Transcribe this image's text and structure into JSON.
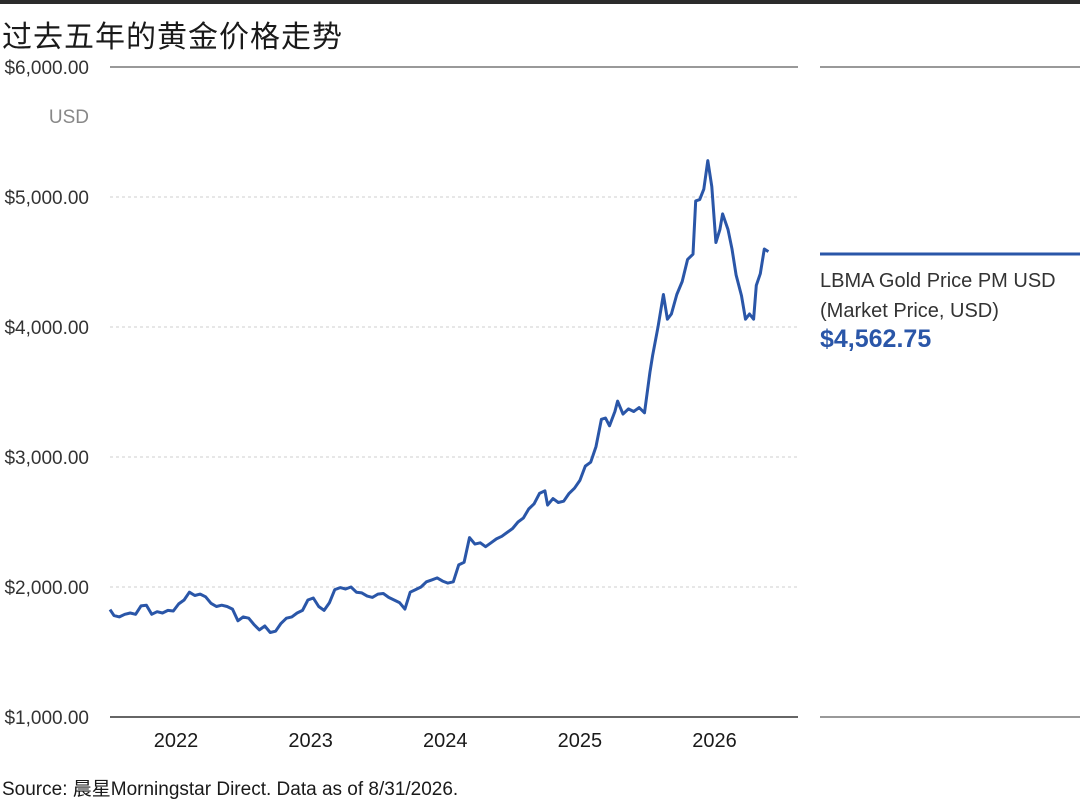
{
  "title": "过去五年的黄金价格走势",
  "source": "Source: 晨星Morningstar Direct. Data as of 8/31/2026.",
  "legend": {
    "series_name_line1": "LBMA Gold Price PM USD",
    "series_name_line2": "(Market Price, USD)",
    "latest_value": "$4,562.75"
  },
  "colors": {
    "series": "#2a56a8",
    "grid": "#cfcfcf",
    "axis": "#333333"
  },
  "chart_data": {
    "type": "line",
    "title": "过去五年的黄金价格走势",
    "ylabel": "USD",
    "xlabel": "",
    "ylim": [
      1000,
      6000
    ],
    "y_ticks": [
      {
        "value": 6000,
        "label": "$6,000.00"
      },
      {
        "value": 5000,
        "label": "$5,000.00"
      },
      {
        "value": 4000,
        "label": "$4,000.00"
      },
      {
        "value": 3000,
        "label": "$3,000.00"
      },
      {
        "value": 2000,
        "label": "$2,000.00"
      },
      {
        "value": 1000,
        "label": "$1,000.00"
      }
    ],
    "y_unit_label": "USD",
    "xlim": [
      2021.55,
      2026.66
    ],
    "x_ticks": [
      {
        "value": 2022,
        "label": "2022"
      },
      {
        "value": 2023,
        "label": "2023"
      },
      {
        "value": 2024,
        "label": "2024"
      },
      {
        "value": 2025,
        "label": "2025"
      },
      {
        "value": 2026,
        "label": "2026"
      }
    ],
    "grid": "horizontal dotted",
    "legend_position": "right",
    "series": [
      {
        "name": "LBMA Gold Price PM USD (Market Price, USD)",
        "points": [
          [
            2021.55,
            1826
          ],
          [
            2021.58,
            1780
          ],
          [
            2021.62,
            1770
          ],
          [
            2021.66,
            1790
          ],
          [
            2021.7,
            1800
          ],
          [
            2021.74,
            1790
          ],
          [
            2021.78,
            1855
          ],
          [
            2021.82,
            1860
          ],
          [
            2021.86,
            1790
          ],
          [
            2021.9,
            1810
          ],
          [
            2021.94,
            1800
          ],
          [
            2021.98,
            1820
          ],
          [
            2022.02,
            1815
          ],
          [
            2022.06,
            1870
          ],
          [
            2022.1,
            1900
          ],
          [
            2022.14,
            1960
          ],
          [
            2022.18,
            1935
          ],
          [
            2022.22,
            1945
          ],
          [
            2022.26,
            1925
          ],
          [
            2022.3,
            1875
          ],
          [
            2022.34,
            1850
          ],
          [
            2022.38,
            1860
          ],
          [
            2022.42,
            1850
          ],
          [
            2022.46,
            1830
          ],
          [
            2022.5,
            1740
          ],
          [
            2022.54,
            1770
          ],
          [
            2022.58,
            1760
          ],
          [
            2022.62,
            1710
          ],
          [
            2022.66,
            1670
          ],
          [
            2022.7,
            1700
          ],
          [
            2022.74,
            1650
          ],
          [
            2022.78,
            1660
          ],
          [
            2022.82,
            1720
          ],
          [
            2022.86,
            1760
          ],
          [
            2022.9,
            1770
          ],
          [
            2022.94,
            1800
          ],
          [
            2022.98,
            1820
          ],
          [
            2023.02,
            1900
          ],
          [
            2023.06,
            1915
          ],
          [
            2023.1,
            1850
          ],
          [
            2023.14,
            1820
          ],
          [
            2023.18,
            1880
          ],
          [
            2023.22,
            1980
          ],
          [
            2023.26,
            1995
          ],
          [
            2023.3,
            1985
          ],
          [
            2023.34,
            2000
          ],
          [
            2023.38,
            1960
          ],
          [
            2023.42,
            1955
          ],
          [
            2023.46,
            1930
          ],
          [
            2023.5,
            1920
          ],
          [
            2023.54,
            1945
          ],
          [
            2023.58,
            1950
          ],
          [
            2023.62,
            1920
          ],
          [
            2023.66,
            1900
          ],
          [
            2023.7,
            1880
          ],
          [
            2023.74,
            1830
          ],
          [
            2023.78,
            1960
          ],
          [
            2023.82,
            1980
          ],
          [
            2023.86,
            2000
          ],
          [
            2023.9,
            2040
          ],
          [
            2023.94,
            2055
          ],
          [
            2023.98,
            2070
          ],
          [
            2024.02,
            2045
          ],
          [
            2024.06,
            2030
          ],
          [
            2024.1,
            2040
          ],
          [
            2024.14,
            2170
          ],
          [
            2024.18,
            2190
          ],
          [
            2024.22,
            2380
          ],
          [
            2024.26,
            2330
          ],
          [
            2024.3,
            2340
          ],
          [
            2024.34,
            2310
          ],
          [
            2024.38,
            2340
          ],
          [
            2024.42,
            2370
          ],
          [
            2024.46,
            2390
          ],
          [
            2024.5,
            2420
          ],
          [
            2024.54,
            2450
          ],
          [
            2024.58,
            2500
          ],
          [
            2024.62,
            2530
          ],
          [
            2024.66,
            2600
          ],
          [
            2024.7,
            2640
          ],
          [
            2024.74,
            2720
          ],
          [
            2024.78,
            2740
          ],
          [
            2024.8,
            2630
          ],
          [
            2024.84,
            2680
          ],
          [
            2024.88,
            2650
          ],
          [
            2024.92,
            2660
          ],
          [
            2024.96,
            2720
          ],
          [
            2025.0,
            2760
          ],
          [
            2025.04,
            2820
          ],
          [
            2025.08,
            2930
          ],
          [
            2025.12,
            2960
          ],
          [
            2025.16,
            3080
          ],
          [
            2025.2,
            3290
          ],
          [
            2025.23,
            3300
          ],
          [
            2025.26,
            3240
          ],
          [
            2025.3,
            3350
          ],
          [
            2025.32,
            3430
          ],
          [
            2025.36,
            3330
          ],
          [
            2025.4,
            3370
          ],
          [
            2025.44,
            3350
          ],
          [
            2025.48,
            3380
          ],
          [
            2025.52,
            3340
          ],
          [
            2025.56,
            3650
          ],
          [
            2025.58,
            3780
          ],
          [
            2025.62,
            4000
          ],
          [
            2025.66,
            4250
          ],
          [
            2025.69,
            4060
          ],
          [
            2025.72,
            4100
          ],
          [
            2025.76,
            4250
          ],
          [
            2025.8,
            4350
          ],
          [
            2025.84,
            4520
          ],
          [
            2025.88,
            4560
          ],
          [
            2025.9,
            4970
          ],
          [
            2025.93,
            4980
          ],
          [
            2025.96,
            5060
          ],
          [
            2025.99,
            5280
          ],
          [
            2026.02,
            5080
          ],
          [
            2026.05,
            4650
          ],
          [
            2026.08,
            4750
          ],
          [
            2026.1,
            4870
          ],
          [
            2026.14,
            4750
          ],
          [
            2026.17,
            4600
          ],
          [
            2026.2,
            4400
          ],
          [
            2026.24,
            4240
          ],
          [
            2026.27,
            4060
          ],
          [
            2026.3,
            4100
          ],
          [
            2026.33,
            4060
          ],
          [
            2026.35,
            4320
          ],
          [
            2026.38,
            4410
          ],
          [
            2026.41,
            4600
          ],
          [
            2026.44,
            4580
          ]
        ]
      }
    ]
  }
}
